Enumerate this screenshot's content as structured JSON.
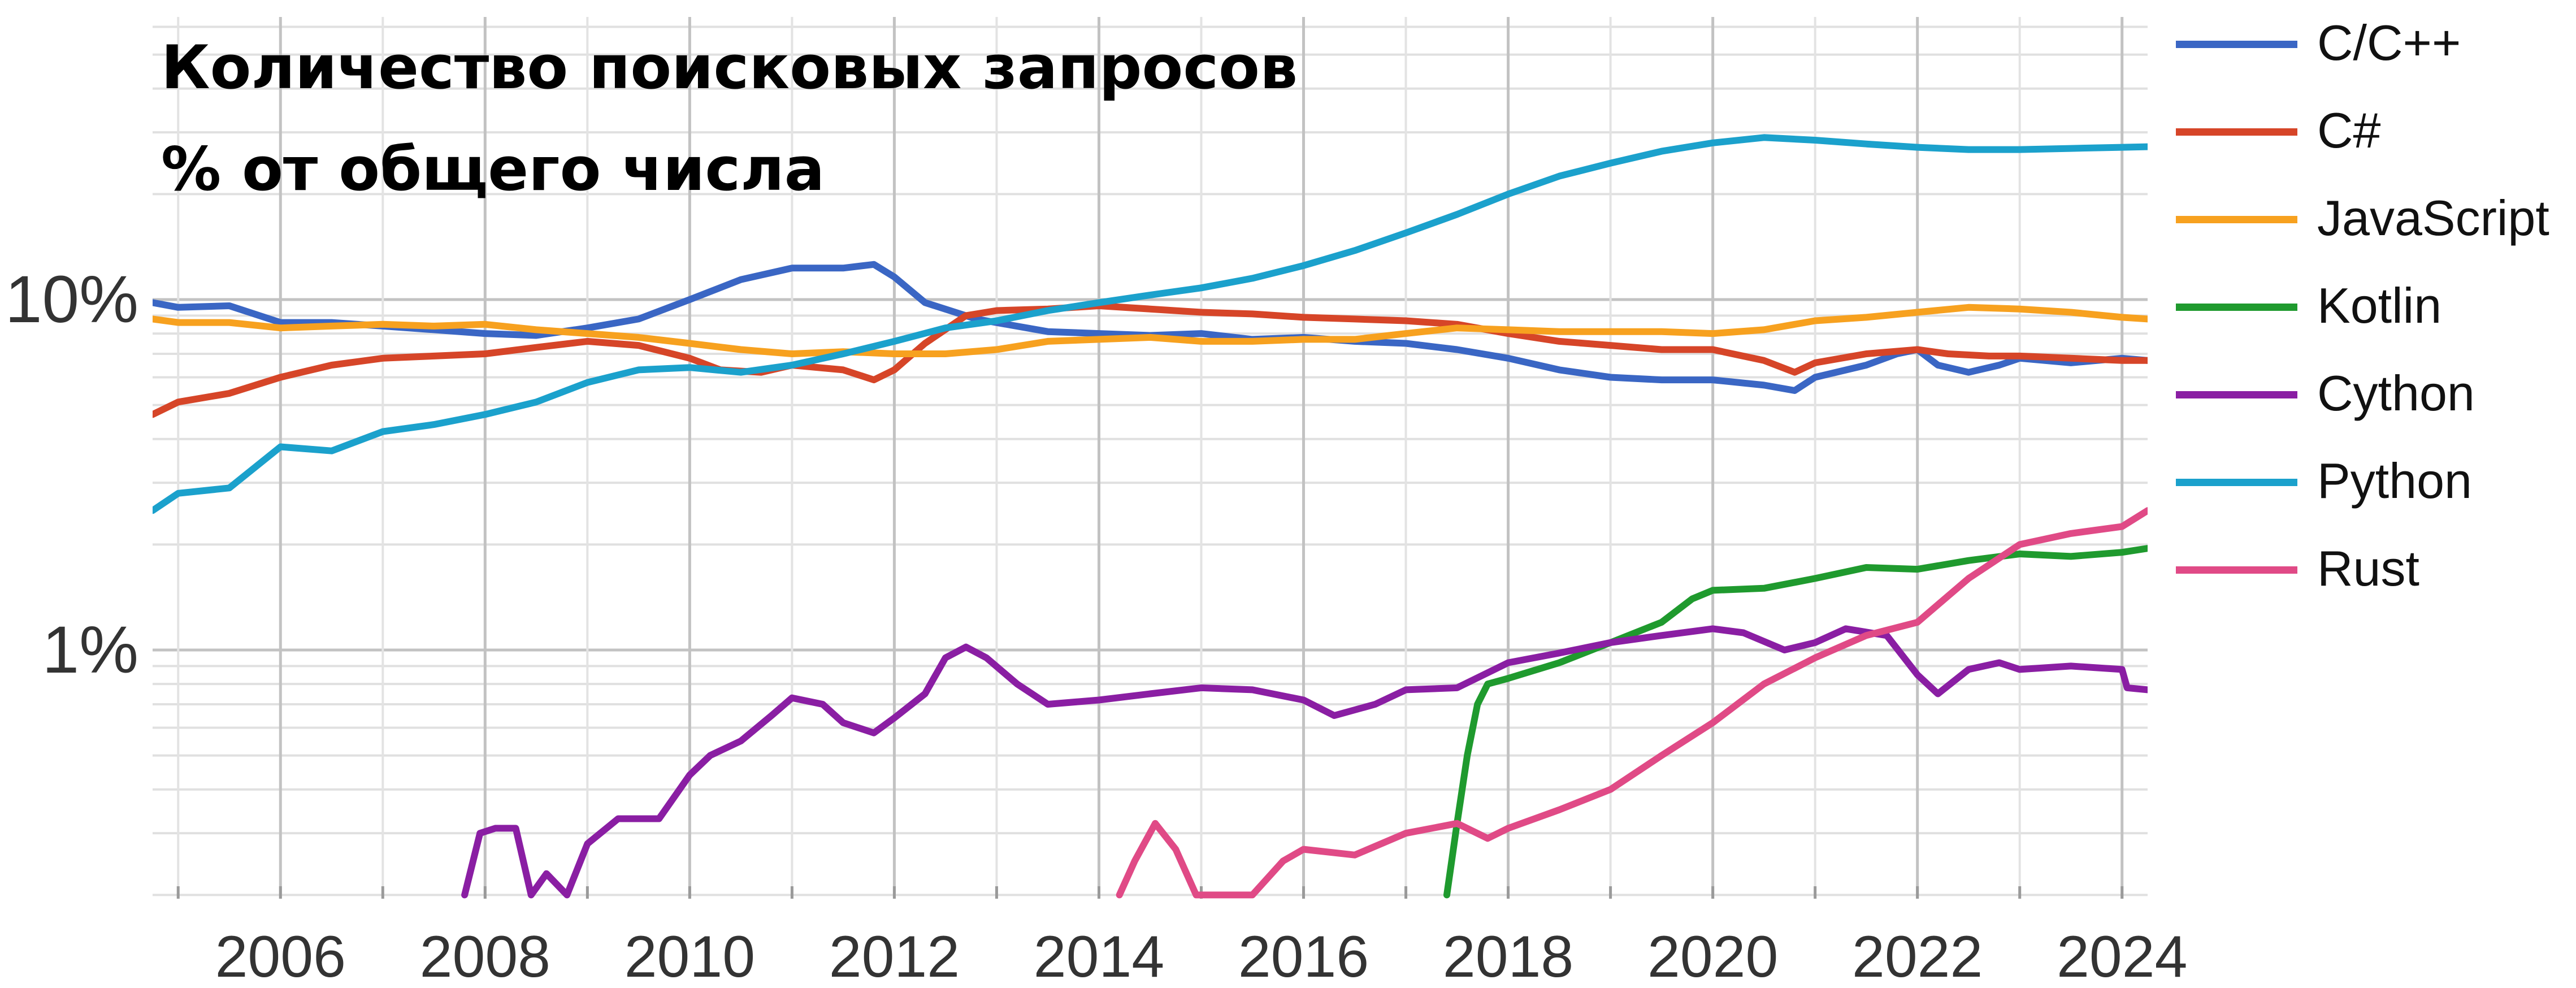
{
  "title": {
    "line1": "Количество поисковых запросов",
    "line2": "% от общего числа"
  },
  "chart_data": {
    "type": "line",
    "y_scale": "log",
    "ylim": [
      0.2,
      40
    ],
    "xlim": [
      2004.75,
      2024.25
    ],
    "grid": true,
    "legend_position": "right",
    "y_tick_labels": [
      {
        "value": 10,
        "label": "10%"
      },
      {
        "value": 1,
        "label": "1%"
      }
    ],
    "x_tick_labels": [
      "2006",
      "2008",
      "2010",
      "2012",
      "2014",
      "2016",
      "2018",
      "2020",
      "2022",
      "2024"
    ],
    "series": [
      {
        "name": "C/C++",
        "color": "#3a66c4",
        "points": [
          [
            2004.75,
            9.8
          ],
          [
            2005,
            9.5
          ],
          [
            2005.5,
            9.6
          ],
          [
            2006,
            8.6
          ],
          [
            2006.5,
            8.6
          ],
          [
            2007,
            8.4
          ],
          [
            2007.5,
            8.2
          ],
          [
            2008,
            8.0
          ],
          [
            2008.5,
            7.9
          ],
          [
            2009,
            8.3
          ],
          [
            2009.5,
            8.8
          ],
          [
            2010,
            10.0
          ],
          [
            2010.5,
            11.4
          ],
          [
            2011,
            12.3
          ],
          [
            2011.5,
            12.3
          ],
          [
            2011.8,
            12.6
          ],
          [
            2012,
            11.6
          ],
          [
            2012.3,
            9.8
          ],
          [
            2012.8,
            8.8
          ],
          [
            2013.5,
            8.1
          ],
          [
            2014,
            8.0
          ],
          [
            2014.5,
            7.9
          ],
          [
            2015,
            8.0
          ],
          [
            2015.5,
            7.7
          ],
          [
            2016,
            7.8
          ],
          [
            2016.5,
            7.6
          ],
          [
            2017,
            7.5
          ],
          [
            2017.5,
            7.2
          ],
          [
            2018,
            6.8
          ],
          [
            2018.5,
            6.3
          ],
          [
            2019,
            6.0
          ],
          [
            2019.5,
            5.9
          ],
          [
            2020,
            5.9
          ],
          [
            2020.5,
            5.7
          ],
          [
            2020.8,
            5.5
          ],
          [
            2021,
            6.0
          ],
          [
            2021.5,
            6.5
          ],
          [
            2021.8,
            7.0
          ],
          [
            2022,
            7.2
          ],
          [
            2022.2,
            6.5
          ],
          [
            2022.5,
            6.2
          ],
          [
            2022.8,
            6.5
          ],
          [
            2023,
            6.8
          ],
          [
            2023.5,
            6.6
          ],
          [
            2024,
            6.8
          ],
          [
            2024.25,
            6.7
          ]
        ]
      },
      {
        "name": "C#",
        "color": "#d64528",
        "points": [
          [
            2004.75,
            4.7
          ],
          [
            2005,
            5.1
          ],
          [
            2005.5,
            5.4
          ],
          [
            2006,
            6.0
          ],
          [
            2006.5,
            6.5
          ],
          [
            2007,
            6.8
          ],
          [
            2007.5,
            6.9
          ],
          [
            2008,
            7.0
          ],
          [
            2008.5,
            7.3
          ],
          [
            2009,
            7.6
          ],
          [
            2009.5,
            7.4
          ],
          [
            2010,
            6.8
          ],
          [
            2010.3,
            6.3
          ],
          [
            2010.7,
            6.2
          ],
          [
            2011,
            6.5
          ],
          [
            2011.5,
            6.3
          ],
          [
            2011.8,
            5.9
          ],
          [
            2012,
            6.3
          ],
          [
            2012.3,
            7.5
          ],
          [
            2012.7,
            9.0
          ],
          [
            2013,
            9.3
          ],
          [
            2013.5,
            9.4
          ],
          [
            2014,
            9.6
          ],
          [
            2014.5,
            9.4
          ],
          [
            2015,
            9.2
          ],
          [
            2015.5,
            9.1
          ],
          [
            2016,
            8.9
          ],
          [
            2016.5,
            8.8
          ],
          [
            2017,
            8.7
          ],
          [
            2017.5,
            8.5
          ],
          [
            2018,
            8.0
          ],
          [
            2018.5,
            7.6
          ],
          [
            2019,
            7.4
          ],
          [
            2019.5,
            7.2
          ],
          [
            2020,
            7.2
          ],
          [
            2020.5,
            6.7
          ],
          [
            2020.8,
            6.2
          ],
          [
            2021,
            6.6
          ],
          [
            2021.5,
            7.0
          ],
          [
            2022,
            7.2
          ],
          [
            2022.3,
            7.0
          ],
          [
            2022.7,
            6.9
          ],
          [
            2023,
            6.9
          ],
          [
            2023.5,
            6.8
          ],
          [
            2024,
            6.7
          ],
          [
            2024.25,
            6.7
          ]
        ]
      },
      {
        "name": "JavaScript",
        "color": "#f7a11f",
        "points": [
          [
            2004.75,
            8.8
          ],
          [
            2005,
            8.6
          ],
          [
            2005.5,
            8.6
          ],
          [
            2006,
            8.3
          ],
          [
            2006.5,
            8.4
          ],
          [
            2007,
            8.5
          ],
          [
            2007.5,
            8.4
          ],
          [
            2008,
            8.5
          ],
          [
            2008.5,
            8.2
          ],
          [
            2009,
            8.0
          ],
          [
            2009.5,
            7.8
          ],
          [
            2010,
            7.5
          ],
          [
            2010.5,
            7.2
          ],
          [
            2011,
            7.0
          ],
          [
            2011.5,
            7.1
          ],
          [
            2012,
            7.0
          ],
          [
            2012.5,
            7.0
          ],
          [
            2013,
            7.2
          ],
          [
            2013.5,
            7.6
          ],
          [
            2014,
            7.7
          ],
          [
            2014.5,
            7.8
          ],
          [
            2015,
            7.6
          ],
          [
            2015.5,
            7.6
          ],
          [
            2016,
            7.7
          ],
          [
            2016.5,
            7.7
          ],
          [
            2017,
            8.0
          ],
          [
            2017.5,
            8.3
          ],
          [
            2018,
            8.2
          ],
          [
            2018.5,
            8.1
          ],
          [
            2019,
            8.1
          ],
          [
            2019.5,
            8.1
          ],
          [
            2020,
            8.0
          ],
          [
            2020.5,
            8.2
          ],
          [
            2021,
            8.7
          ],
          [
            2021.5,
            8.9
          ],
          [
            2022,
            9.2
          ],
          [
            2022.5,
            9.5
          ],
          [
            2023,
            9.4
          ],
          [
            2023.5,
            9.2
          ],
          [
            2024,
            8.9
          ],
          [
            2024.25,
            8.8
          ]
        ]
      },
      {
        "name": "Kotlin",
        "color": "#1f9a2e",
        "points": [
          [
            2017.4,
            0.2
          ],
          [
            2017.5,
            0.32
          ],
          [
            2017.6,
            0.5
          ],
          [
            2017.7,
            0.7
          ],
          [
            2017.8,
            0.8
          ],
          [
            2018,
            0.83
          ],
          [
            2018.5,
            0.92
          ],
          [
            2019,
            1.05
          ],
          [
            2019.5,
            1.2
          ],
          [
            2019.8,
            1.4
          ],
          [
            2020,
            1.48
          ],
          [
            2020.5,
            1.5
          ],
          [
            2021,
            1.6
          ],
          [
            2021.5,
            1.72
          ],
          [
            2022,
            1.7
          ],
          [
            2022.5,
            1.8
          ],
          [
            2023,
            1.88
          ],
          [
            2023.5,
            1.85
          ],
          [
            2024,
            1.9
          ],
          [
            2024.25,
            1.95
          ]
        ]
      },
      {
        "name": "Cython",
        "color": "#8a1ea3",
        "points": [
          [
            2007.8,
            0.2
          ],
          [
            2007.95,
            0.3
          ],
          [
            2008.1,
            0.31
          ],
          [
            2008.3,
            0.31
          ],
          [
            2008.45,
            0.2
          ],
          [
            2008.6,
            0.23
          ],
          [
            2008.8,
            0.2
          ],
          [
            2009,
            0.28
          ],
          [
            2009.3,
            0.33
          ],
          [
            2009.7,
            0.33
          ],
          [
            2010,
            0.44
          ],
          [
            2010.2,
            0.5
          ],
          [
            2010.5,
            0.55
          ],
          [
            2010.8,
            0.65
          ],
          [
            2011,
            0.73
          ],
          [
            2011.3,
            0.7
          ],
          [
            2011.5,
            0.62
          ],
          [
            2011.8,
            0.58
          ],
          [
            2012,
            0.64
          ],
          [
            2012.3,
            0.75
          ],
          [
            2012.5,
            0.95
          ],
          [
            2012.7,
            1.02
          ],
          [
            2012.9,
            0.95
          ],
          [
            2013.2,
            0.8
          ],
          [
            2013.5,
            0.7
          ],
          [
            2014,
            0.72
          ],
          [
            2014.5,
            0.75
          ],
          [
            2015,
            0.78
          ],
          [
            2015.5,
            0.77
          ],
          [
            2016,
            0.72
          ],
          [
            2016.3,
            0.65
          ],
          [
            2016.7,
            0.7
          ],
          [
            2017,
            0.77
          ],
          [
            2017.5,
            0.78
          ],
          [
            2018,
            0.92
          ],
          [
            2018.5,
            0.98
          ],
          [
            2019,
            1.05
          ],
          [
            2019.5,
            1.1
          ],
          [
            2020,
            1.15
          ],
          [
            2020.3,
            1.12
          ],
          [
            2020.7,
            1.0
          ],
          [
            2021,
            1.05
          ],
          [
            2021.3,
            1.15
          ],
          [
            2021.7,
            1.1
          ],
          [
            2022,
            0.85
          ],
          [
            2022.2,
            0.75
          ],
          [
            2022.5,
            0.88
          ],
          [
            2022.8,
            0.92
          ],
          [
            2023,
            0.88
          ],
          [
            2023.5,
            0.9
          ],
          [
            2024,
            0.88
          ],
          [
            2024.05,
            0.78
          ],
          [
            2024.25,
            0.77
          ]
        ]
      },
      {
        "name": "Python",
        "color": "#1ba1cc",
        "points": [
          [
            2004.75,
            2.5
          ],
          [
            2005,
            2.8
          ],
          [
            2005.5,
            2.9
          ],
          [
            2006,
            3.8
          ],
          [
            2006.5,
            3.7
          ],
          [
            2007,
            4.2
          ],
          [
            2007.5,
            4.4
          ],
          [
            2008,
            4.7
          ],
          [
            2008.5,
            5.1
          ],
          [
            2009,
            5.8
          ],
          [
            2009.5,
            6.3
          ],
          [
            2010,
            6.4
          ],
          [
            2010.5,
            6.2
          ],
          [
            2011,
            6.5
          ],
          [
            2011.5,
            7.0
          ],
          [
            2012,
            7.6
          ],
          [
            2012.5,
            8.3
          ],
          [
            2013,
            8.7
          ],
          [
            2013.5,
            9.3
          ],
          [
            2014,
            9.8
          ],
          [
            2014.5,
            10.3
          ],
          [
            2015,
            10.8
          ],
          [
            2015.5,
            11.5
          ],
          [
            2016,
            12.5
          ],
          [
            2016.5,
            13.8
          ],
          [
            2017,
            15.5
          ],
          [
            2017.5,
            17.5
          ],
          [
            2018,
            20.0
          ],
          [
            2018.5,
            22.5
          ],
          [
            2019,
            24.5
          ],
          [
            2019.5,
            26.5
          ],
          [
            2020,
            28.0
          ],
          [
            2020.5,
            29.0
          ],
          [
            2021,
            28.5
          ],
          [
            2021.5,
            27.8
          ],
          [
            2022,
            27.2
          ],
          [
            2022.5,
            26.8
          ],
          [
            2023,
            26.8
          ],
          [
            2023.5,
            27.0
          ],
          [
            2024,
            27.2
          ],
          [
            2024.25,
            27.3
          ]
        ]
      },
      {
        "name": "Rust",
        "color": "#e04a86",
        "points": [
          [
            2014.2,
            0.2
          ],
          [
            2014.35,
            0.25
          ],
          [
            2014.55,
            0.32
          ],
          [
            2014.75,
            0.27
          ],
          [
            2014.95,
            0.2
          ],
          [
            2015.5,
            0.2
          ],
          [
            2015.8,
            0.25
          ],
          [
            2016,
            0.27
          ],
          [
            2016.5,
            0.26
          ],
          [
            2017,
            0.3
          ],
          [
            2017.5,
            0.32
          ],
          [
            2017.8,
            0.29
          ],
          [
            2018,
            0.31
          ],
          [
            2018.5,
            0.35
          ],
          [
            2019,
            0.4
          ],
          [
            2019.5,
            0.5
          ],
          [
            2020,
            0.62
          ],
          [
            2020.5,
            0.8
          ],
          [
            2021,
            0.95
          ],
          [
            2021.5,
            1.1
          ],
          [
            2022,
            1.2
          ],
          [
            2022.5,
            1.6
          ],
          [
            2023,
            2.0
          ],
          [
            2023.5,
            2.15
          ],
          [
            2024,
            2.25
          ],
          [
            2024.25,
            2.5
          ]
        ]
      }
    ]
  }
}
